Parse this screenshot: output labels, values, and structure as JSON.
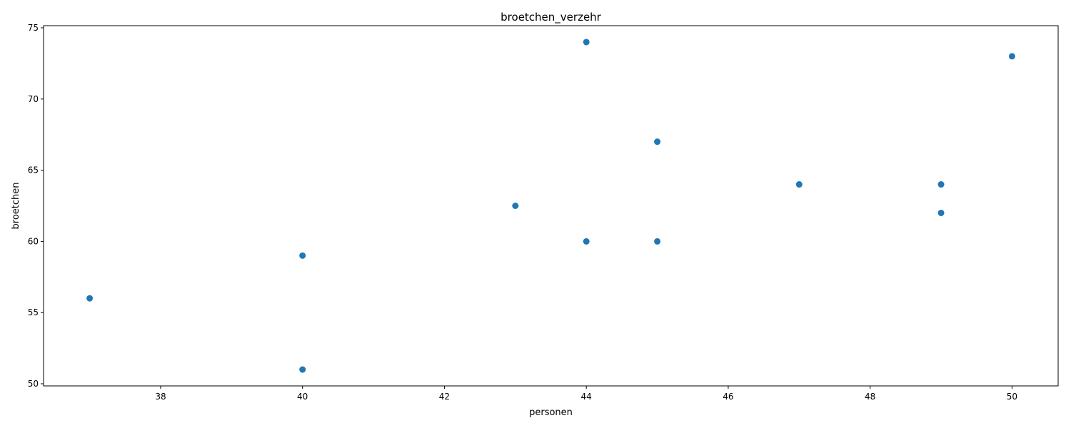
{
  "chart_data": {
    "type": "scatter",
    "title": "broetchen_verzehr",
    "xlabel": "personen",
    "ylabel": "broetchen",
    "xlim": [
      36.35,
      50.65
    ],
    "ylim": [
      49.85,
      75.15
    ],
    "xticks": [
      38,
      40,
      42,
      44,
      46,
      48,
      50
    ],
    "yticks": [
      50,
      55,
      60,
      65,
      70,
      75
    ],
    "grid": false,
    "series": [
      {
        "color": "#1f77b4",
        "points": [
          {
            "x": 37,
            "y": 56
          },
          {
            "x": 40,
            "y": 59
          },
          {
            "x": 40,
            "y": 51
          },
          {
            "x": 43,
            "y": 62.5
          },
          {
            "x": 44,
            "y": 74
          },
          {
            "x": 44,
            "y": 60
          },
          {
            "x": 45,
            "y": 67
          },
          {
            "x": 45,
            "y": 60
          },
          {
            "x": 47,
            "y": 64
          },
          {
            "x": 49,
            "y": 64
          },
          {
            "x": 49,
            "y": 62
          },
          {
            "x": 50,
            "y": 73
          }
        ]
      }
    ]
  }
}
